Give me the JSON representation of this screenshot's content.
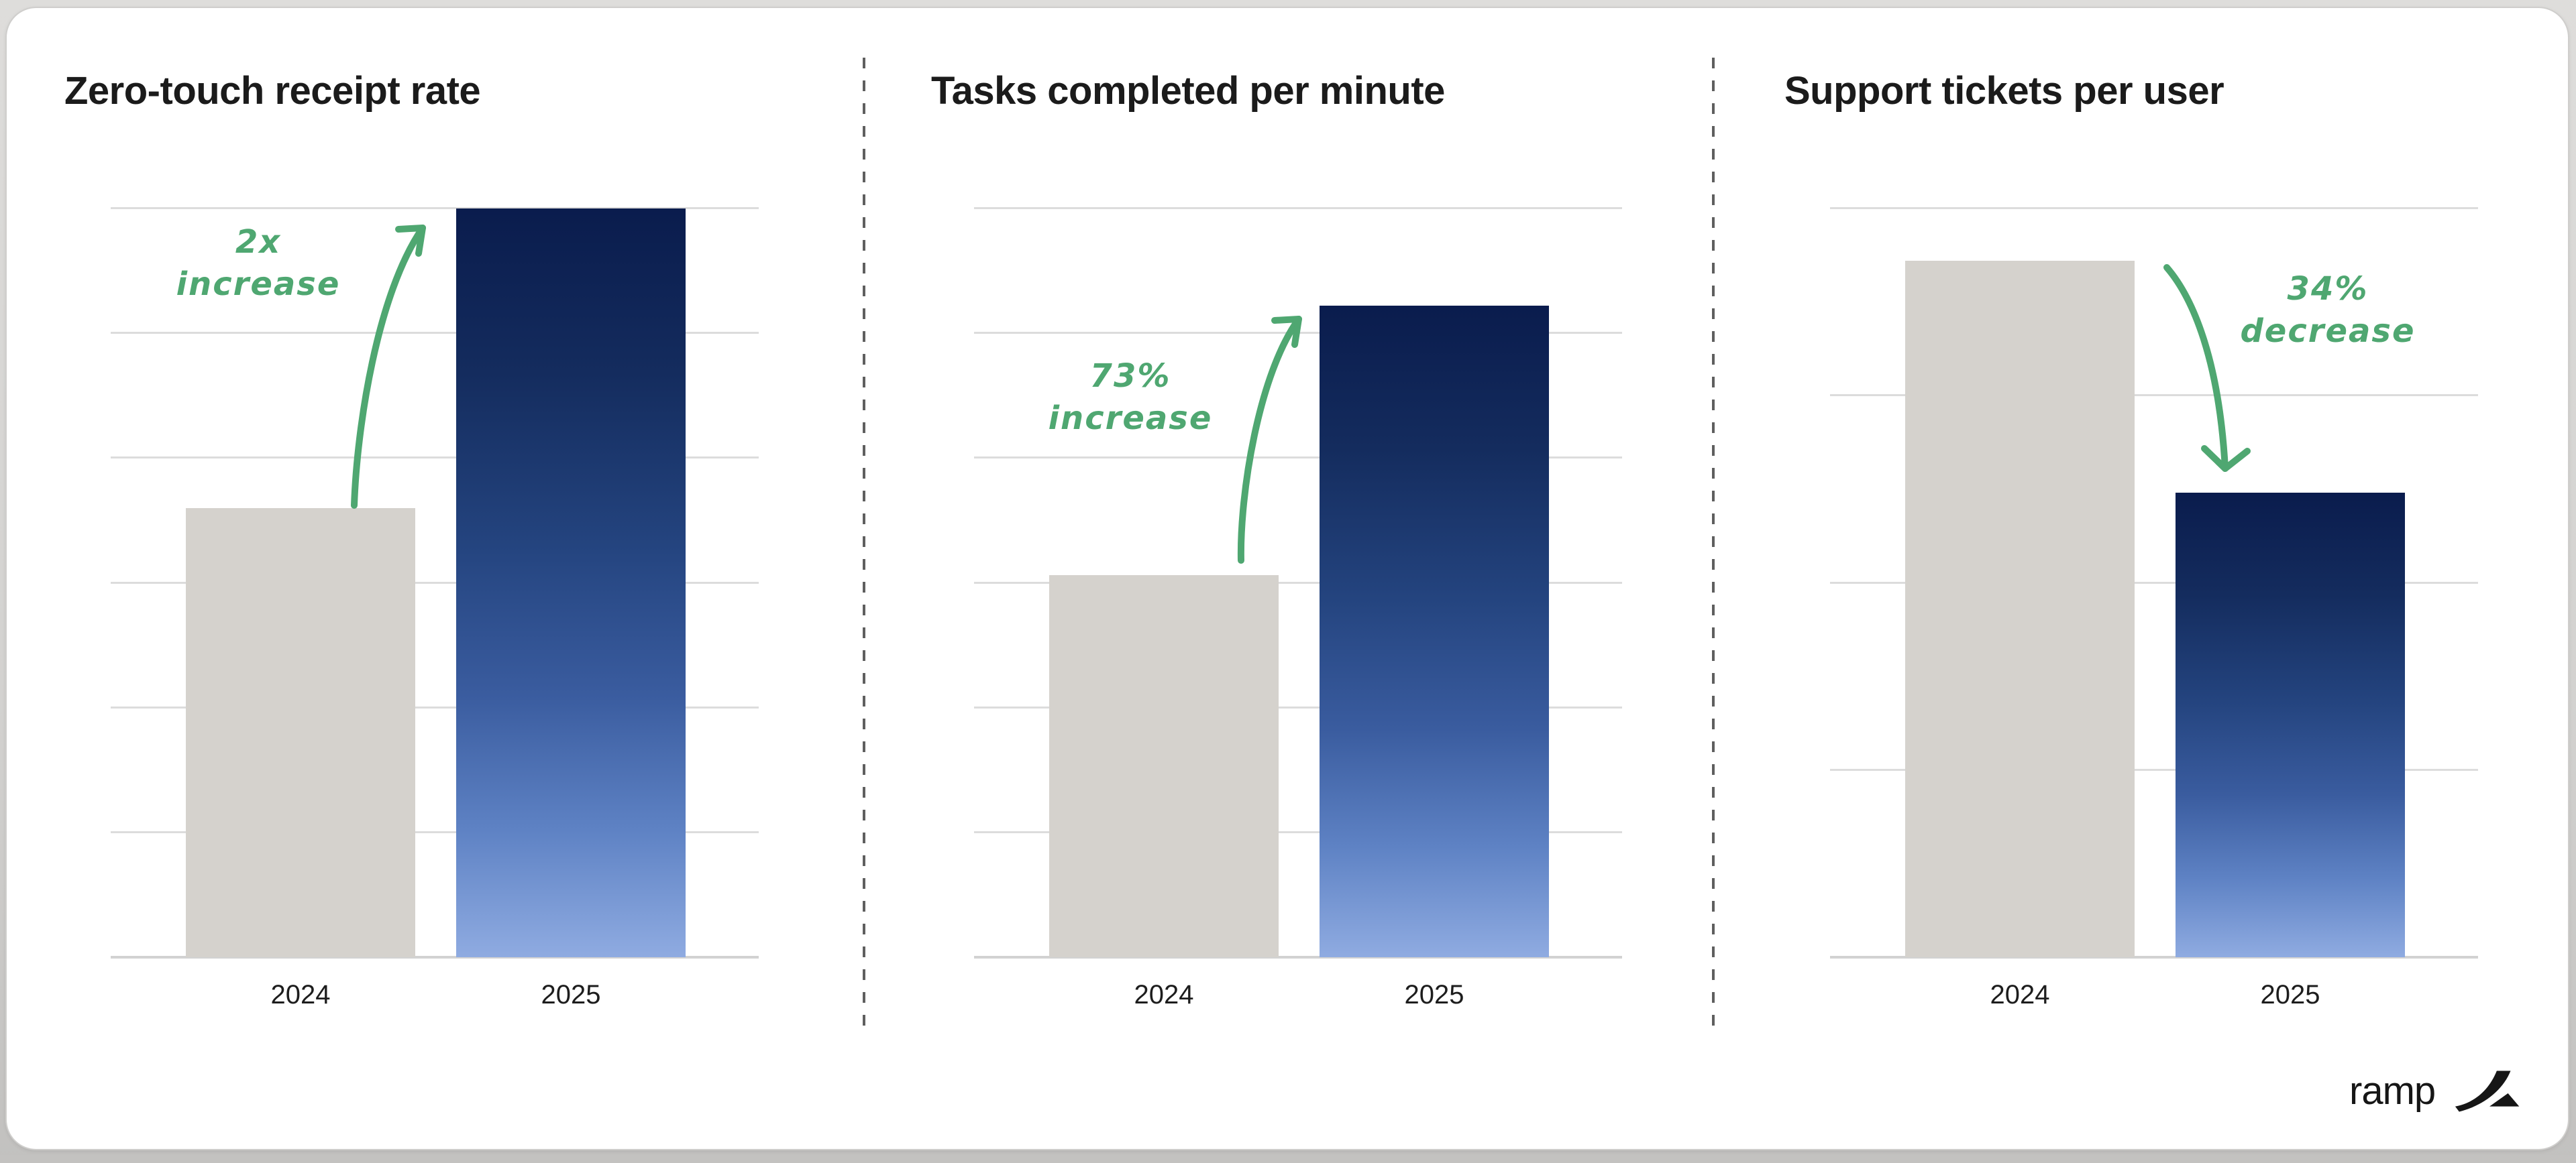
{
  "panels": [
    {
      "title": "Zero-touch receipt rate",
      "annotation": {
        "line1": "2x",
        "line2": "increase"
      },
      "categories": [
        "2024",
        "2025"
      ]
    },
    {
      "title": "Tasks completed per minute",
      "annotation": {
        "line1": "73%",
        "line2": "increase"
      },
      "categories": [
        "2024",
        "2025"
      ]
    },
    {
      "title": "Support tickets per user",
      "annotation": {
        "line1": "34%",
        "line2": "decrease"
      },
      "categories": [
        "2024",
        "2025"
      ]
    }
  ],
  "chart_data": [
    {
      "type": "bar",
      "title": "Zero-touch receipt rate",
      "categories": [
        "2024",
        "2025"
      ],
      "values": [
        0.6,
        1.0
      ],
      "annotation": "2x increase",
      "annotation_direction": "up",
      "ylim": [
        0,
        1
      ],
      "grid": true,
      "gridline_count": 7,
      "legend": "none"
    },
    {
      "type": "bar",
      "title": "Tasks completed per minute",
      "categories": [
        "2024",
        "2025"
      ],
      "values": [
        0.51,
        0.87
      ],
      "annotation": "73% increase",
      "annotation_direction": "up",
      "ylim": [
        0,
        1
      ],
      "grid": true,
      "gridline_count": 7,
      "legend": "none"
    },
    {
      "type": "bar",
      "title": "Support tickets per user",
      "categories": [
        "2024",
        "2025"
      ],
      "values": [
        0.93,
        0.62
      ],
      "annotation": "34% decrease",
      "annotation_direction": "down",
      "ylim": [
        0,
        1
      ],
      "grid": true,
      "gridline_count": 5,
      "legend": "none"
    }
  ],
  "logo": {
    "text": "ramp",
    "icon": "ramp-swoosh-icon"
  },
  "colors": {
    "accent_green": "#4fa771",
    "bar_gray": "#d5d2cd",
    "bar_blue_top": "#0a1c4d",
    "bar_blue_bottom": "#8fabe1",
    "gridline": "#dcdcdc",
    "separator": "#5f5f5f",
    "card_background": "#ffffff",
    "title_text": "#1b1b1b"
  }
}
